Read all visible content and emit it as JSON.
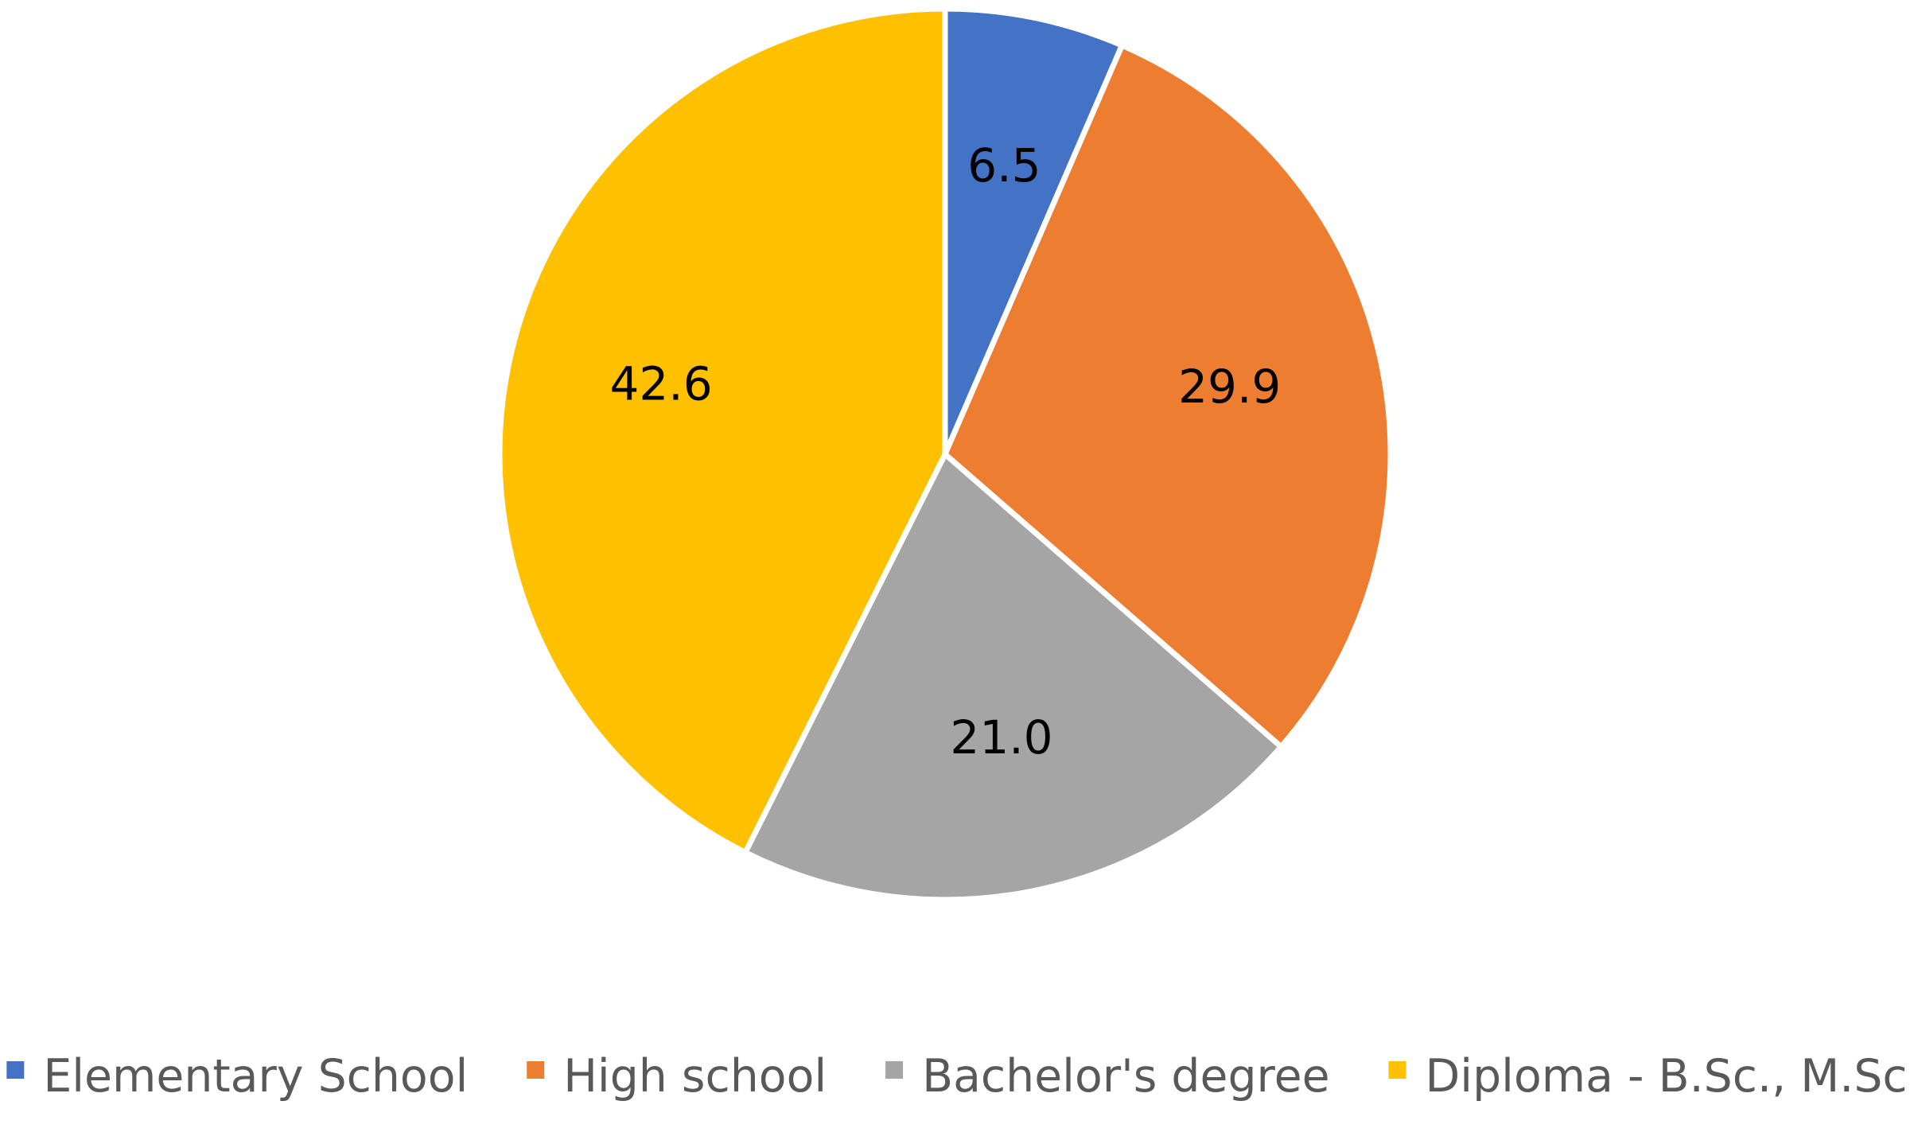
{
  "chart_data": {
    "type": "pie",
    "title": "",
    "categories": [
      "Elementary School",
      "High school",
      "Bachelor's degree",
      "Diploma - B.Sc., M.Sc"
    ],
    "values": [
      6.5,
      29.9,
      21.0,
      42.6
    ],
    "data_labels": [
      "6.5",
      "29.9",
      "21.0",
      "42.6"
    ],
    "colors": [
      "#4472C4",
      "#ED7D31",
      "#A5A5A5",
      "#FFC000"
    ],
    "start_angle_deg": 0,
    "direction": "clockwise",
    "legend": {
      "position": "bottom",
      "entries": [
        "Elementary School",
        "High school",
        "Bachelor's degree",
        "Diploma - B.Sc., M.Sc"
      ]
    }
  }
}
